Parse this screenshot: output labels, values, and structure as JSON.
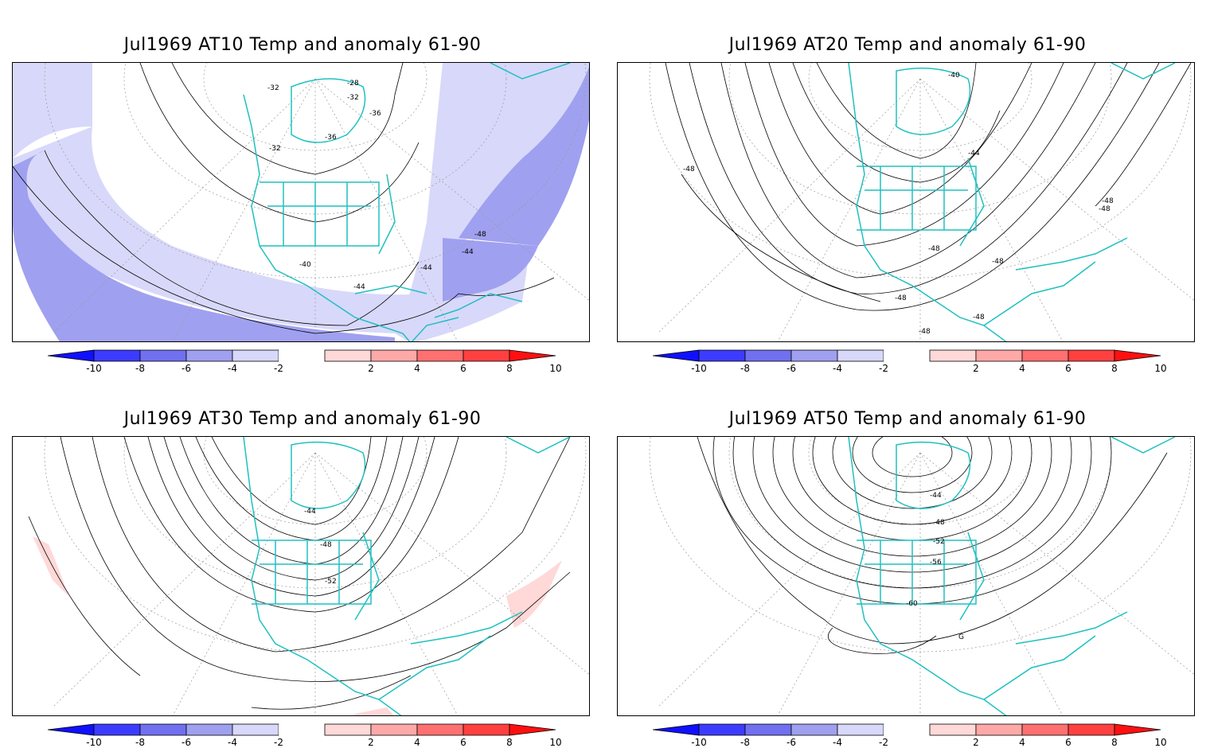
{
  "panels": [
    {
      "title": "Jul1969 AT10 Temp and anomaly 61-90",
      "contour_labels": [
        "-28",
        "-32",
        "-32",
        "-36",
        "-32",
        "-36",
        "-40",
        "-44",
        "-44",
        "-44",
        "-48"
      ]
    },
    {
      "title": "Jul1969 AT20 Temp and anomaly 61-90",
      "contour_labels": [
        "-40",
        "-44",
        "-48",
        "-48",
        "-48",
        "-48",
        "-48",
        "-48",
        "-48",
        "-48"
      ]
    },
    {
      "title": "Jul1969 AT30 Temp and anomaly 61-90",
      "contour_labels": [
        "-44",
        "-48",
        "-52"
      ]
    },
    {
      "title": "Jul1969 AT50 Temp and anomaly 61-90",
      "contour_labels": [
        "-44",
        "-48",
        "-52",
        "-56",
        "-60",
        "G"
      ]
    }
  ],
  "colorbar": {
    "labels": [
      "-10",
      "-8",
      "-6",
      "-4",
      "-2",
      "2",
      "4",
      "6",
      "8",
      "10"
    ],
    "colors": [
      "#1010ff",
      "#3c3cff",
      "#7070f0",
      "#a0a0f0",
      "#d8d8fa",
      "#ffffff",
      "#ffd8d8",
      "#ffa8a8",
      "#ff7070",
      "#ff4040",
      "#ff1010"
    ]
  },
  "style": {
    "coastline_color": "#20c0c0",
    "negative_anomaly_light": "#d8d8fa",
    "negative_anomaly_mid": "#a0a0f0",
    "positive_anomaly_light": "#ffd8d8"
  }
}
